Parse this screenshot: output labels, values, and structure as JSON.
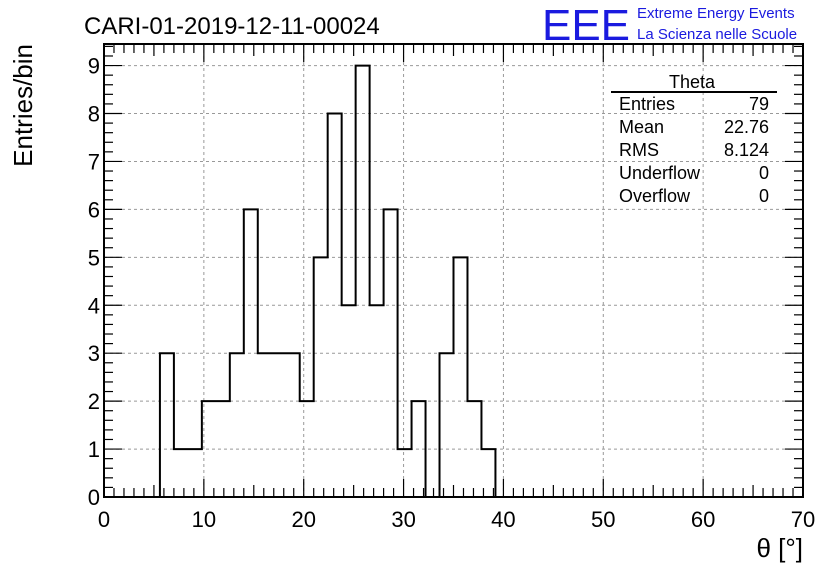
{
  "header": {
    "run_title": "CARI-01-2019-12-11-00024",
    "logo_mark": "EEE",
    "logo_line1": "Extreme Energy Events",
    "logo_line2": "La Scienza nelle Scuole"
  },
  "colors": {
    "logo": "#1a1adf",
    "histogram": "#000000",
    "grid": "#999999"
  },
  "stats_box": {
    "title": "Theta",
    "rows": [
      {
        "label": "Entries",
        "value": "79"
      },
      {
        "label": "Mean",
        "value": "22.76"
      },
      {
        "label": "RMS",
        "value": "8.124"
      },
      {
        "label": "Underflow",
        "value": "0"
      },
      {
        "label": "Overflow",
        "value": "0"
      }
    ]
  },
  "chart_data": {
    "type": "histogram",
    "xlabel": "θ [°]",
    "ylabel": "Entries/bin",
    "xlim": [
      0,
      70
    ],
    "ylim": [
      0,
      9.45
    ],
    "grid": true,
    "x_ticks": [
      0,
      10,
      20,
      30,
      40,
      50,
      60,
      70
    ],
    "y_ticks": [
      0,
      1,
      2,
      3,
      4,
      5,
      6,
      7,
      8,
      9
    ],
    "bin_edges": [
      0,
      1.4,
      2.8,
      4.2,
      5.6,
      7.0,
      8.4,
      9.8,
      11.2,
      12.6,
      14.0,
      15.4,
      16.8,
      18.2,
      19.6,
      21.0,
      22.4,
      23.8,
      25.2,
      26.6,
      28.0,
      29.4,
      30.8,
      32.2,
      33.6,
      35.0,
      36.4,
      37.8,
      39.2,
      40.6,
      42.0,
      43.4,
      44.8,
      46.2,
      47.6,
      49.0,
      50.4,
      51.8,
      53.2,
      54.6,
      56.0,
      57.4,
      58.8,
      60.2,
      61.6,
      63.0,
      64.4,
      65.8,
      67.2,
      68.6,
      70.0
    ],
    "counts": [
      0,
      0,
      0,
      0,
      3,
      1,
      1,
      2,
      2,
      3,
      6,
      3,
      3,
      3,
      2,
      5,
      8,
      4,
      9,
      4,
      6,
      1,
      2,
      0,
      3,
      5,
      2,
      1,
      0,
      0,
      0,
      0,
      0,
      0,
      0,
      0,
      0,
      0,
      0,
      0,
      0,
      0,
      0,
      0,
      0,
      0,
      0,
      0,
      0,
      0
    ]
  }
}
